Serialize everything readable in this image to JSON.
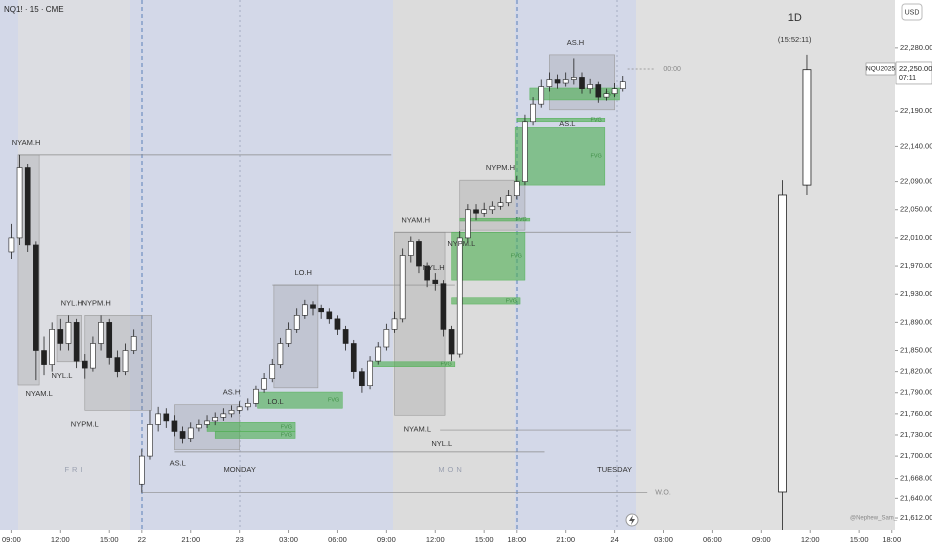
{
  "chart_data": {
    "type": "candlestick",
    "title": "NQ1! · 15 · CME",
    "currency": "USD",
    "symbol_label": "NQU2025",
    "last_price": 22250,
    "last_price_label": "22,250.00",
    "countdown": "07:11",
    "watermark": "@Nephew_Sam_",
    "up_color": "#ffffff",
    "down_color": "#222222",
    "xlim": [
      -0.7,
      54.2
    ],
    "ylim": [
      21595,
      22348
    ],
    "xticks": [
      {
        "value": 0,
        "label": "09:00"
      },
      {
        "value": 3,
        "label": "12:00"
      },
      {
        "value": 6,
        "label": "15:00"
      },
      {
        "value": 8,
        "label": "22"
      },
      {
        "value": 11,
        "label": "21:00"
      },
      {
        "value": 14,
        "label": "23"
      },
      {
        "value": 17,
        "label": "03:00"
      },
      {
        "value": 20,
        "label": "06:00"
      },
      {
        "value": 23,
        "label": "09:00"
      },
      {
        "value": 26,
        "label": "12:00"
      },
      {
        "value": 29,
        "label": "15:00"
      },
      {
        "value": 31,
        "label": "18:00"
      },
      {
        "value": 34,
        "label": "21:00"
      },
      {
        "value": 37,
        "label": "24"
      },
      {
        "value": 40,
        "label": "03:00"
      },
      {
        "value": 43,
        "label": "06:00"
      },
      {
        "value": 46,
        "label": "09:00"
      },
      {
        "value": 49,
        "label": "12:00"
      },
      {
        "value": 52,
        "label": "15:00"
      },
      {
        "value": 54,
        "label": "18:00"
      }
    ],
    "yticks": [
      {
        "value": 22280,
        "label": "22,280.00"
      },
      {
        "value": 22190,
        "label": "22,190.00"
      },
      {
        "value": 22140,
        "label": "22,140.00"
      },
      {
        "value": 22090,
        "label": "22,090.00"
      },
      {
        "value": 22050,
        "label": "22,050.00"
      },
      {
        "value": 22010,
        "label": "22,010.00"
      },
      {
        "value": 21970,
        "label": "21,970.00"
      },
      {
        "value": 21930,
        "label": "21,930.00"
      },
      {
        "value": 21890,
        "label": "21,890.00"
      },
      {
        "value": 21850,
        "label": "21,850.00"
      },
      {
        "value": 21820,
        "label": "21,820.00"
      },
      {
        "value": 21790,
        "label": "21,790.00"
      },
      {
        "value": 21760,
        "label": "21,760.00"
      },
      {
        "value": 21730,
        "label": "21,730.00"
      },
      {
        "value": 21700,
        "label": "21,700.00"
      },
      {
        "value": 21668,
        "label": "21,668.00"
      },
      {
        "value": 21640,
        "label": "21,640.00"
      },
      {
        "value": 21612,
        "label": "21,612.00"
      }
    ],
    "x": [
      0,
      0.5,
      1,
      1.5,
      2,
      2.5,
      3,
      3.5,
      4,
      4.5,
      5,
      5.5,
      6,
      6.5,
      7,
      7.5,
      8,
      8.5,
      9,
      9.5,
      10,
      10.5,
      11,
      11.5,
      12,
      12.5,
      13,
      13.5,
      14,
      14.5,
      15,
      15.5,
      16,
      16.5,
      17,
      17.5,
      18,
      18.5,
      19,
      19.5,
      20,
      20.5,
      21,
      21.5,
      22,
      22.5,
      23,
      23.5,
      24,
      24.5,
      25,
      25.5,
      26,
      26.5,
      27,
      27.5,
      28,
      28.5,
      29,
      29.5,
      30,
      30.5,
      31,
      31.5,
      32,
      32.5,
      33,
      33.5,
      34,
      34.5,
      35,
      35.5,
      36,
      36.5,
      37,
      37.5
    ],
    "open": [
      21990,
      22010,
      22110,
      22000,
      21850,
      21830,
      21880,
      21860,
      21890,
      21835,
      21825,
      21860,
      21890,
      21840,
      21820,
      21850,
      21660,
      21700,
      21745,
      21760,
      21750,
      21735,
      21725,
      21740,
      21745,
      21750,
      21755,
      21760,
      21765,
      21770,
      21775,
      21795,
      21810,
      21830,
      21860,
      21880,
      21900,
      21915,
      21910,
      21905,
      21895,
      21880,
      21860,
      21820,
      21800,
      21835,
      21855,
      21880,
      21895,
      21985,
      22005,
      21970,
      21950,
      21945,
      21880,
      21845,
      22010,
      22050,
      22045,
      22050,
      22055,
      22060,
      22070,
      22090,
      22175,
      22200,
      22225,
      22235,
      22230,
      22235,
      22238,
      22222,
      22228,
      22210,
      22215,
      22222
    ],
    "high": [
      22030,
      22128,
      22115,
      22005,
      21870,
      21890,
      21895,
      21900,
      21895,
      21845,
      21870,
      21900,
      21895,
      21850,
      21860,
      21880,
      21710,
      21765,
      21770,
      21768,
      21758,
      21742,
      21748,
      21752,
      21758,
      21762,
      21768,
      21772,
      21778,
      21782,
      21800,
      21818,
      21838,
      21868,
      21890,
      21910,
      21922,
      21920,
      21915,
      21910,
      21900,
      21885,
      21865,
      21825,
      21842,
      21862,
      21888,
      21905,
      21995,
      22012,
      22008,
      21975,
      21960,
      21950,
      21885,
      22020,
      22058,
      22058,
      22060,
      22062,
      22068,
      22078,
      22098,
      22185,
      22210,
      22235,
      22245,
      22242,
      22245,
      22265,
      22245,
      22236,
      22232,
      22222,
      22230,
      22240
    ],
    "low": [
      21980,
      22000,
      21990,
      21808,
      21815,
      21820,
      21850,
      21850,
      21825,
      21810,
      21820,
      21850,
      21830,
      21812,
      21815,
      21845,
      21648,
      21695,
      21735,
      21740,
      21728,
      21718,
      21720,
      21735,
      21740,
      21744,
      21750,
      21755,
      21760,
      21765,
      21770,
      21790,
      21805,
      21825,
      21855,
      21875,
      21895,
      21900,
      21895,
      21888,
      21872,
      21850,
      21810,
      21790,
      21795,
      21830,
      21850,
      21875,
      21890,
      21975,
      21960,
      21940,
      21935,
      21870,
      21835,
      21840,
      22005,
      22035,
      22040,
      22044,
      22050,
      22055,
      22065,
      22085,
      22170,
      22195,
      22218,
      22222,
      22225,
      22228,
      22215,
      22215,
      22202,
      22205,
      22210,
      22218
    ],
    "close": [
      22010,
      22110,
      22000,
      21850,
      21830,
      21880,
      21860,
      21890,
      21835,
      21825,
      21860,
      21890,
      21840,
      21820,
      21850,
      21870,
      21700,
      21745,
      21760,
      21750,
      21735,
      21725,
      21740,
      21745,
      21750,
      21755,
      21760,
      21765,
      21770,
      21775,
      21795,
      21810,
      21830,
      21860,
      21880,
      21900,
      21915,
      21910,
      21905,
      21895,
      21880,
      21860,
      21820,
      21800,
      21835,
      21855,
      21880,
      21895,
      21985,
      22005,
      21970,
      21950,
      21945,
      21880,
      21845,
      22010,
      22050,
      22045,
      22050,
      22055,
      22060,
      22070,
      22090,
      22175,
      22200,
      22225,
      22235,
      22230,
      22235,
      22238,
      22222,
      22228,
      22210,
      22215,
      22222,
      22232
    ],
    "day_labels": [
      {
        "label": "FRI",
        "t": 3.9
      },
      {
        "label": "MONDAY",
        "t": 14
      },
      {
        "label": "MON",
        "t": 27
      },
      {
        "label": "TUESDAY",
        "t": 37
      }
    ],
    "zones": [
      {
        "t0": 0.4,
        "t1": 1.7,
        "low": 21801,
        "high": 22128
      },
      {
        "t0": 2.8,
        "t1": 4.3,
        "low": 21834,
        "high": 21900
      },
      {
        "t0": 4.5,
        "t1": 8.6,
        "low": 21765,
        "high": 21900
      },
      {
        "t0": 10,
        "t1": 14,
        "low": 21709,
        "high": 21773
      },
      {
        "t0": 16.1,
        "t1": 18.8,
        "low": 21797,
        "high": 21943
      },
      {
        "t0": 23.5,
        "t1": 26.6,
        "low": 21758,
        "high": 22018
      },
      {
        "t0": 27.5,
        "t1": 31.5,
        "low": 22021,
        "high": 22092
      },
      {
        "t0": 33,
        "t1": 37,
        "low": 22192,
        "high": 22270
      }
    ],
    "fvgs": [
      {
        "label": "FVG",
        "t0": 12,
        "t1": 17.4,
        "low": 21735,
        "high": 21748
      },
      {
        "label": "FVG",
        "t0": 12.5,
        "t1": 17.4,
        "low": 21725,
        "high": 21735
      },
      {
        "label": "FVG",
        "t0": 15.1,
        "t1": 20.3,
        "low": 21768,
        "high": 21791
      },
      {
        "label": "FVG",
        "t0": 22,
        "t1": 27.2,
        "low": 21827,
        "high": 21834
      },
      {
        "label": "FVG",
        "t0": 27,
        "t1": 31.5,
        "low": 21950,
        "high": 22018
      },
      {
        "label": "FVG",
        "t0": 27,
        "t1": 31.2,
        "low": 21916,
        "high": 21925
      },
      {
        "label": "FVG",
        "t0": 27.5,
        "t1": 31.8,
        "low": 22034,
        "high": 22038
      },
      {
        "label": "FVG",
        "t0": 30.9,
        "t1": 36.4,
        "low": 22085,
        "high": 22167
      },
      {
        "label": "FVG",
        "t0": 31,
        "t1": 36.4,
        "low": 22175,
        "high": 22180
      },
      {
        "label": "FVG",
        "t0": 31.8,
        "t1": 37.3,
        "low": 22206,
        "high": 22223
      }
    ],
    "lines": [
      {
        "price": 22128,
        "t0": 0.4,
        "t1": 23.3
      },
      {
        "price": 21943,
        "t0": 16,
        "t1": 27.2
      },
      {
        "price": 22018,
        "t0": 23.5,
        "t1": 38
      },
      {
        "price": 21737,
        "t0": 26.3,
        "t1": 38
      },
      {
        "price": 21706,
        "t0": 10,
        "t1": 32.7
      },
      {
        "price": 21648,
        "t0": 8,
        "t1": 39,
        "label": "W.O."
      },
      {
        "price": 22250,
        "t0": 37.8,
        "t1": 39.5,
        "label": "00:00"
      }
    ],
    "levels": [
      {
        "label": "NYAM.H",
        "price": 22128,
        "t": 0.9
      },
      {
        "label": "NYL.H",
        "price": 21900,
        "t": 3.7
      },
      {
        "label": "NYPM.H",
        "price": 21900,
        "t": 5.2
      },
      {
        "label": "NYL.L",
        "price": 21834,
        "t": 3.1
      },
      {
        "label": "NYAM.L",
        "price": 21808,
        "t": 1.7
      },
      {
        "label": "NYPM.L",
        "price": 21765,
        "t": 4.5
      },
      {
        "label": "AS.H",
        "price": 21773,
        "t": 13.5
      },
      {
        "label": "AS.L",
        "price": 21709,
        "t": 10.2
      },
      {
        "label": "LO.H",
        "price": 21943,
        "t": 17.9
      },
      {
        "label": "LO.L",
        "price": 21797,
        "t": 16.2
      },
      {
        "label": "NYAM.H",
        "price": 22018,
        "t": 24.8
      },
      {
        "label": "NYPM.L",
        "price": 22021,
        "t": 27.6
      },
      {
        "label": "NYL.H",
        "price": 21950,
        "t": 25.9
      },
      {
        "label": "NYAM.L",
        "price": 21758,
        "t": 24.9
      },
      {
        "label": "NYL.L",
        "price": 21737,
        "t": 26.4
      },
      {
        "label": "NYPM.H",
        "price": 22092,
        "t": 30
      },
      {
        "label": "AS.H",
        "price": 22270,
        "t": 34.6
      },
      {
        "label": "AS.L",
        "price": 22192,
        "t": 34.1
      }
    ],
    "daily": {
      "label": "1D",
      "timer": "(15:52:11)",
      "x": [
        47.3,
        48.8
      ],
      "open": [
        21649,
        22085
      ],
      "high": [
        22092,
        22270
      ],
      "low": [
        21595,
        22071
      ],
      "close": [
        22071,
        22249
      ]
    }
  }
}
